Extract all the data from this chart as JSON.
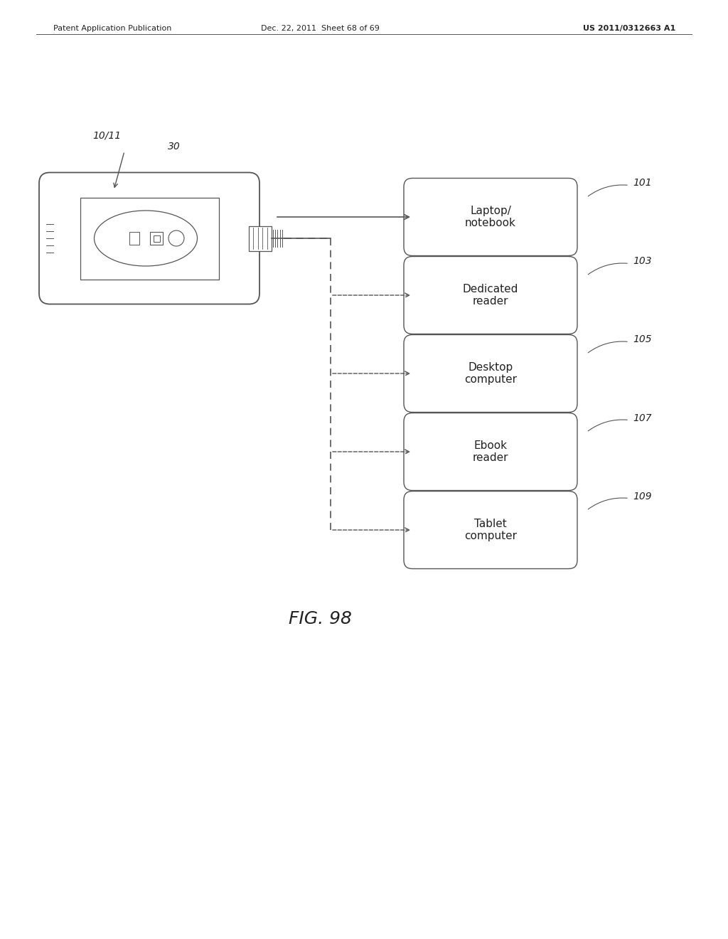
{
  "bg_color": "#ffffff",
  "header_left": "Patent Application Publication",
  "header_mid": "Dec. 22, 2011  Sheet 68 of 69",
  "header_right": "US 2011/0312663 A1",
  "figure_label": "FIG. 98",
  "device_label1": "10/11",
  "device_label2": "30",
  "boxes": [
    {
      "label": "Laptop/\nnotebook",
      "ref": "101"
    },
    {
      "label": "Dedicated\nreader",
      "ref": "103"
    },
    {
      "label": "Desktop\ncomputer",
      "ref": "105"
    },
    {
      "label": "Ebook\nreader",
      "ref": "107"
    },
    {
      "label": "Tablet\ncomputer",
      "ref": "109"
    }
  ],
  "line_color": "#555555",
  "text_color": "#222222"
}
